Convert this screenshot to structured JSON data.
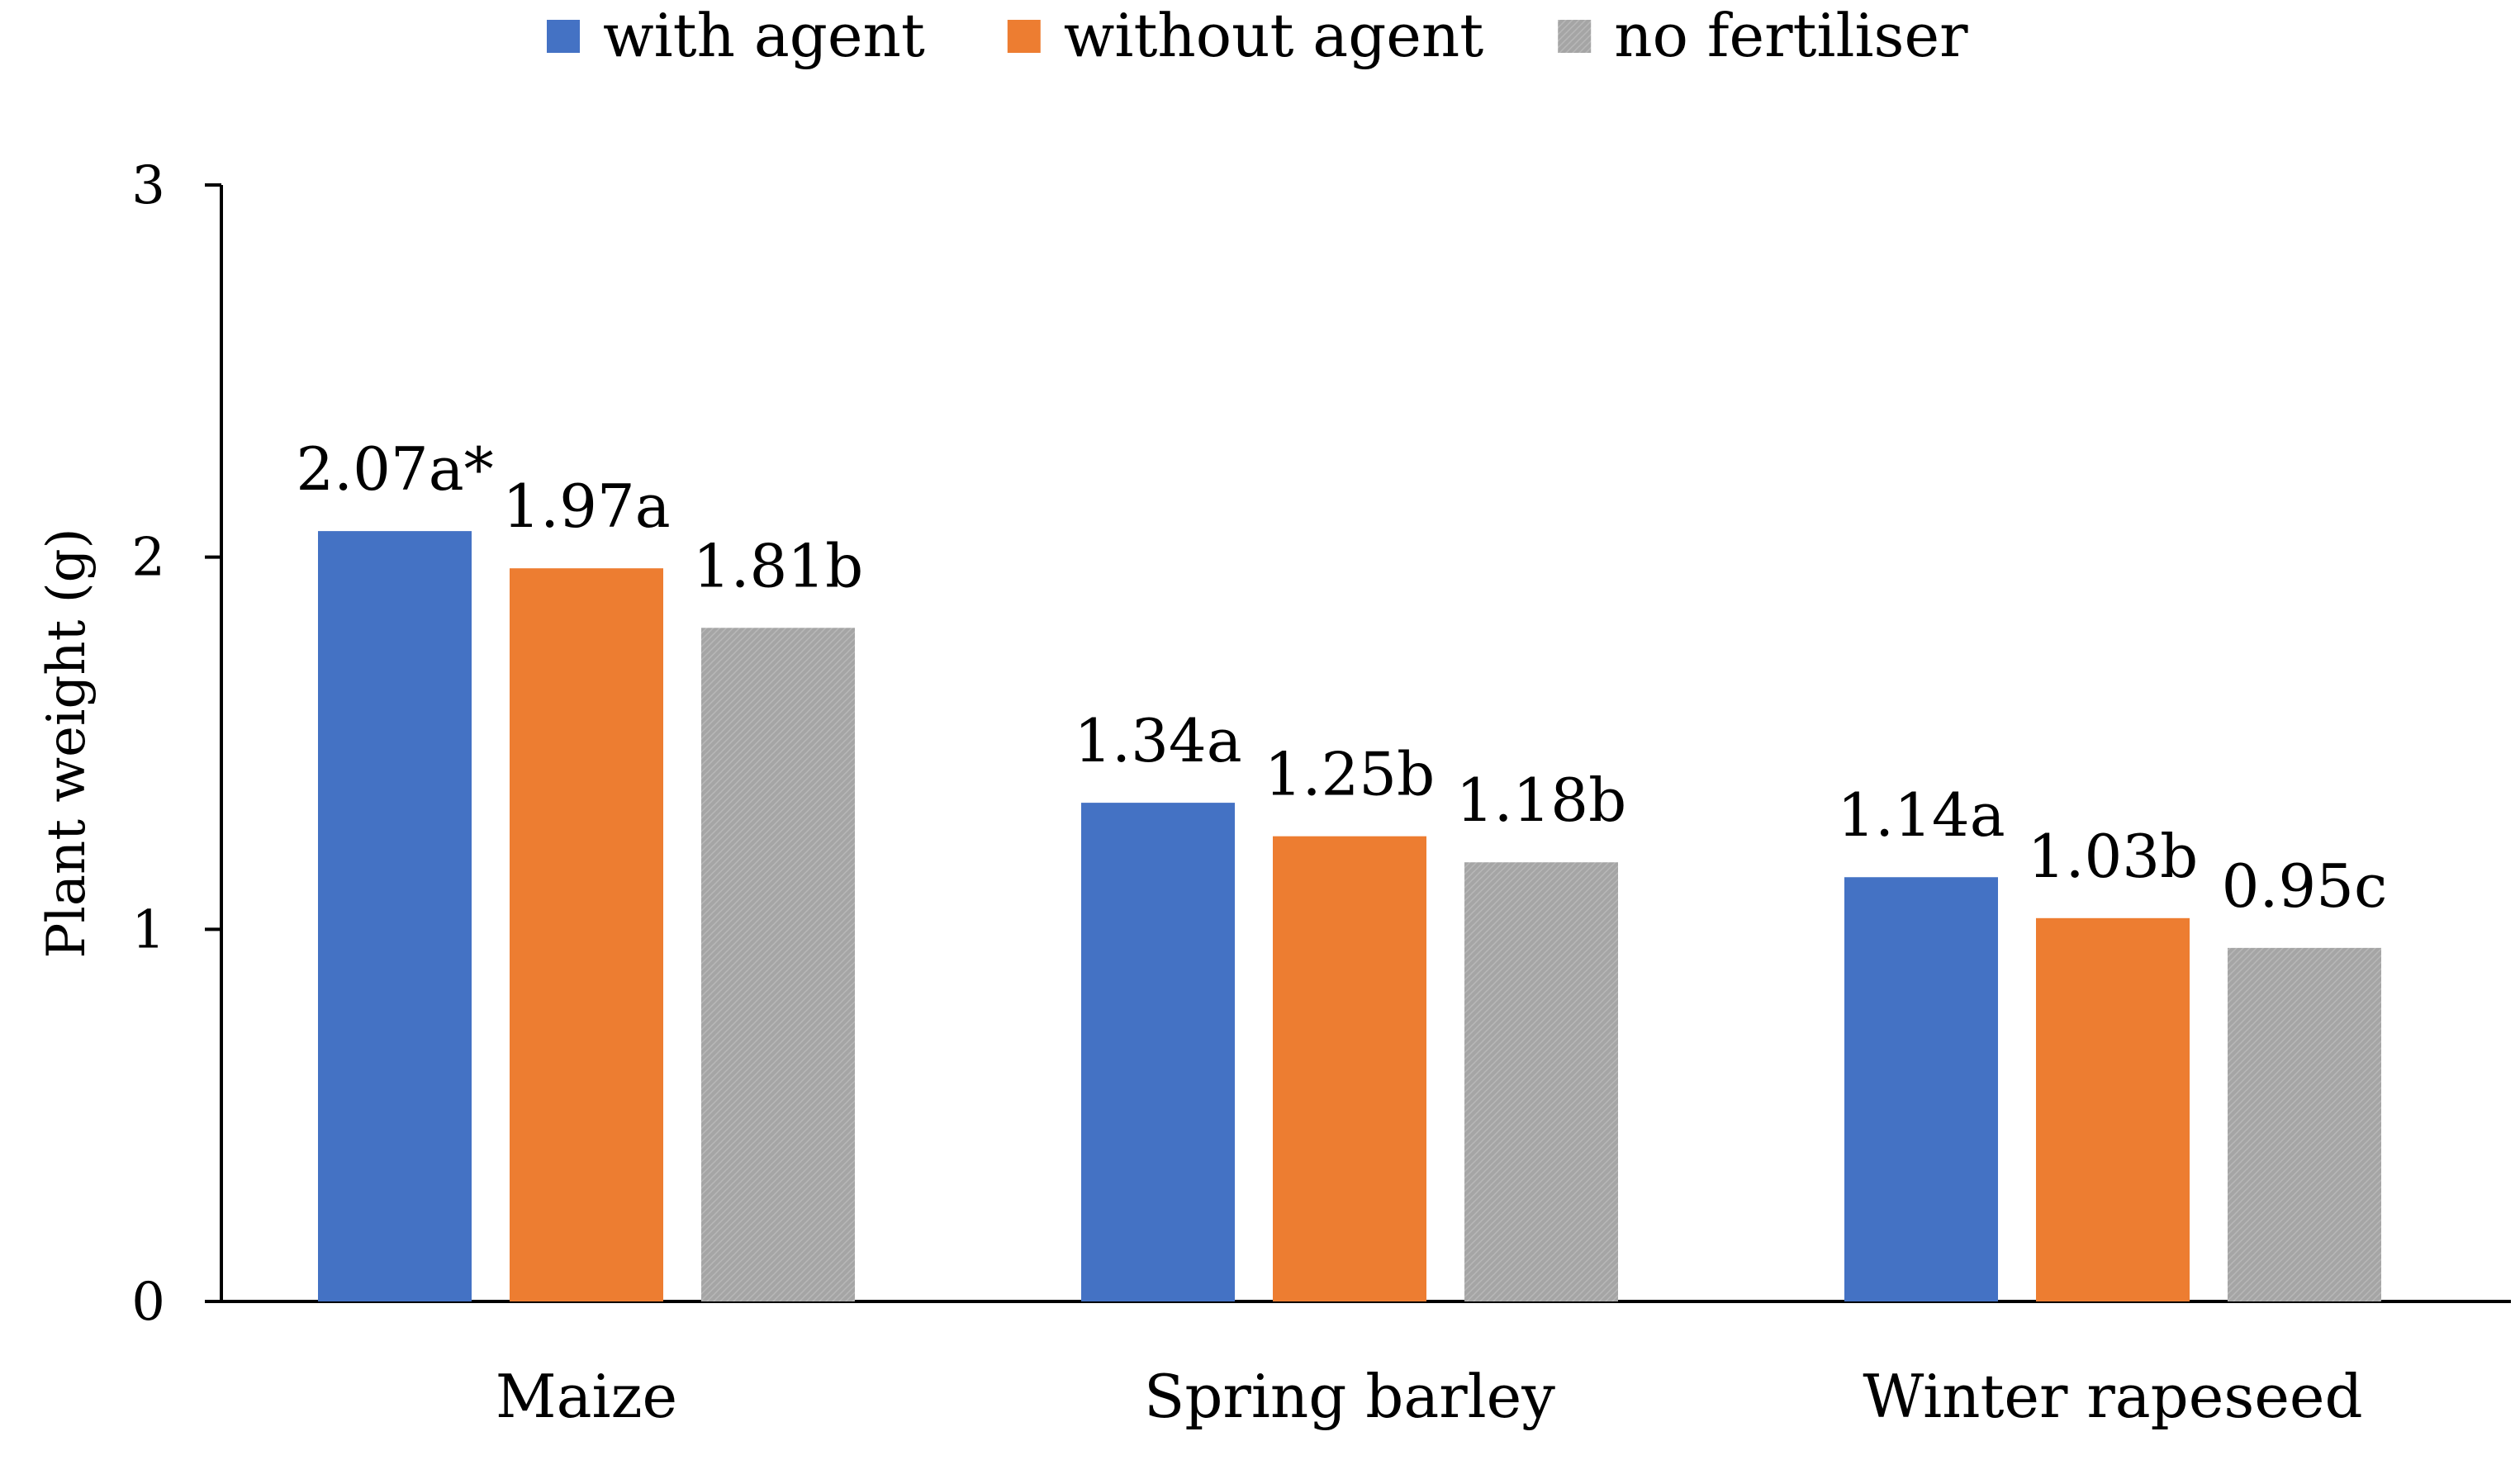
{
  "chart_data": {
    "type": "bar",
    "title": "",
    "xlabel": "",
    "ylabel": "Plant weight (g)",
    "ylim": [
      0,
      3
    ],
    "yticks": [
      0,
      1,
      2,
      3
    ],
    "grid": false,
    "legend_position": "top-center",
    "categories": [
      "Maize",
      "Spring barley",
      "Winter rapeseed"
    ],
    "series": [
      {
        "name": "with agent",
        "color": "#4472C4",
        "values": [
          2.07,
          1.34,
          1.14
        ],
        "labels": [
          "2.07a*",
          "1.34a",
          "1.14a"
        ]
      },
      {
        "name": "without agent",
        "color": "#ED7D31",
        "values": [
          1.97,
          1.25,
          1.03
        ],
        "labels": [
          "1.97a",
          "1.25b",
          "1.03b"
        ]
      },
      {
        "name": "no fertiliser",
        "color": "#A5A5A5",
        "values": [
          1.81,
          1.18,
          0.95
        ],
        "labels": [
          "1.81b",
          "1.18b",
          "0.95c"
        ]
      }
    ]
  }
}
